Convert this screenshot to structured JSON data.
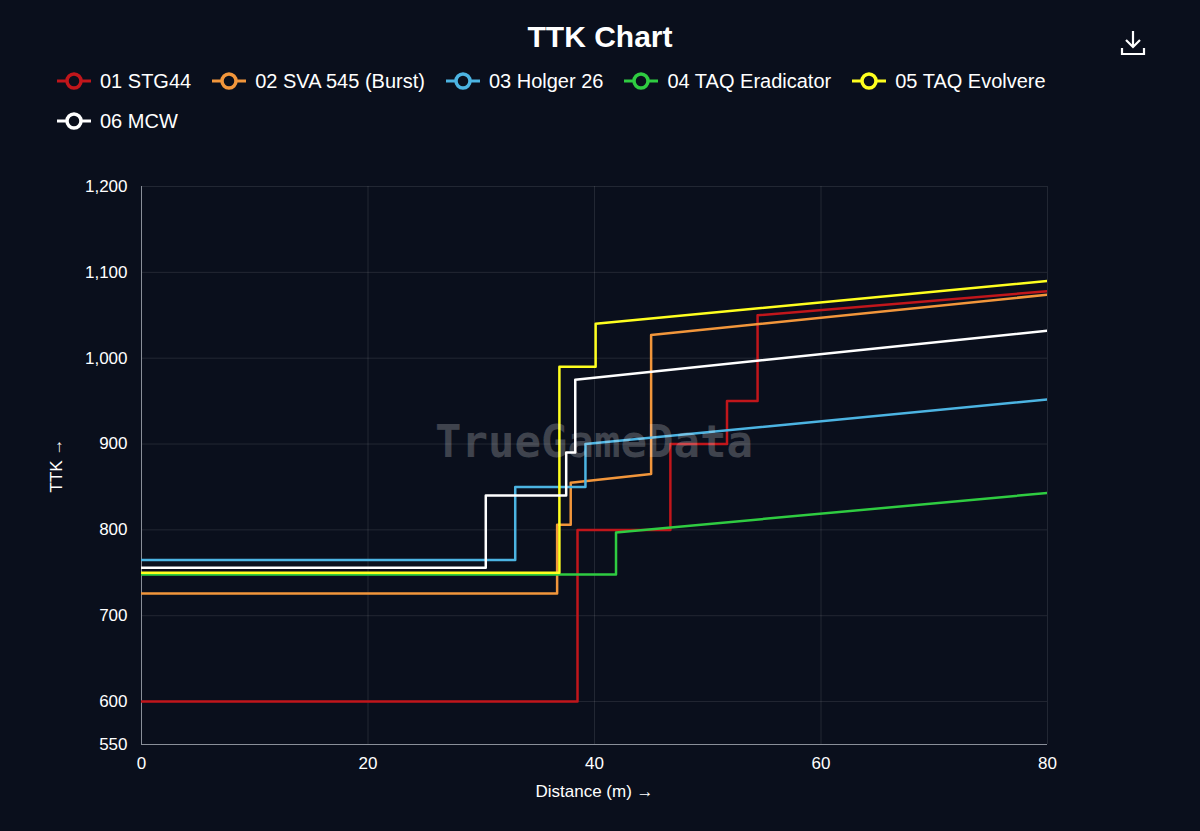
{
  "chart_data": {
    "type": "line",
    "title": "TTK Chart",
    "x_label": "Distance (m)",
    "y_label": "TTK",
    "watermark": "TrueGameData",
    "xlim": [
      0,
      80
    ],
    "xticks": [
      0,
      20,
      40,
      60,
      80
    ],
    "ylim": [
      550,
      1200
    ],
    "yticks": [
      550,
      600,
      700,
      800,
      900,
      {
        "value": 1000,
        "label": "1,000"
      },
      {
        "value": 1100,
        "label": "1,100"
      },
      {
        "value": 1200,
        "label": "1,200"
      }
    ],
    "grid": true,
    "legend": "top",
    "marker": "circle",
    "series": [
      {
        "name": "01 STG44",
        "color": "#c1161b",
        "x": [
          0,
          38.5,
          38.5,
          46.7,
          46.7,
          51.7,
          51.7,
          54.4,
          54.4,
          80
        ],
        "values": [
          600,
          600,
          800,
          800,
          900,
          900,
          950,
          950,
          1050,
          1078
        ]
      },
      {
        "name": "02 SVA 545 (Burst)",
        "color": "#f2963b",
        "x": [
          0,
          36.7,
          36.7,
          37.9,
          37.9,
          45,
          45,
          80
        ],
        "values": [
          726,
          726,
          806,
          806,
          855,
          865,
          1027,
          1074
        ]
      },
      {
        "name": "03 Holger 26",
        "color": "#4cb4e2",
        "x": [
          0,
          33,
          33,
          39.2,
          39.2,
          80
        ],
        "values": [
          765,
          765,
          850,
          850,
          900,
          952
        ]
      },
      {
        "name": "04 TAQ Eradicator",
        "color": "#2fcc41",
        "x": [
          0,
          41.9,
          41.9,
          80
        ],
        "values": [
          748,
          748,
          797,
          843
        ]
      },
      {
        "name": "05 TAQ Evolvere",
        "color": "#ffff1f",
        "x": [
          0,
          36.9,
          36.9,
          40.1,
          40.1,
          80
        ],
        "values": [
          750,
          750,
          990,
          990,
          1040,
          1090
        ]
      },
      {
        "name": "06 MCW",
        "color": "#ffffff",
        "x": [
          0,
          30.4,
          30.4,
          37.5,
          37.5,
          38.3,
          38.3,
          80
        ],
        "values": [
          756,
          756,
          840,
          840,
          890,
          890,
          975,
          1032
        ]
      }
    ]
  }
}
